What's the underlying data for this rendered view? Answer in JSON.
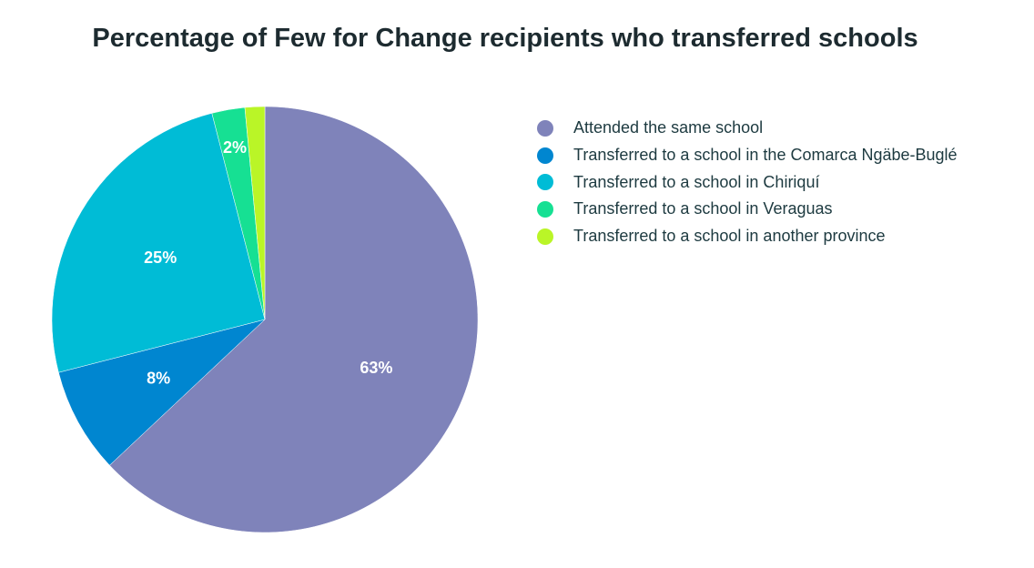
{
  "chart_data": {
    "type": "pie",
    "title": "Percentage of Few for Change recipients who transferred schools",
    "slices": [
      {
        "label": "Attended the same school",
        "value": 63,
        "display": "63%",
        "color": "#7f83ba"
      },
      {
        "label": "Transferred to a school in the Comarca Ngäbe-Buglé",
        "value": 8,
        "display": "8%",
        "color": "#0086d0"
      },
      {
        "label": "Transferred to a school in Chiriquí",
        "value": 25,
        "display": "25%",
        "color": "#00bcd6"
      },
      {
        "label": "Transferred to a school in Veraguas",
        "value": 2.5,
        "display": "2%",
        "color": "#16e093"
      },
      {
        "label": "Transferred to a school in another province",
        "value": 1.5,
        "display": "",
        "color": "#baf527"
      }
    ],
    "legend_position": "right"
  }
}
